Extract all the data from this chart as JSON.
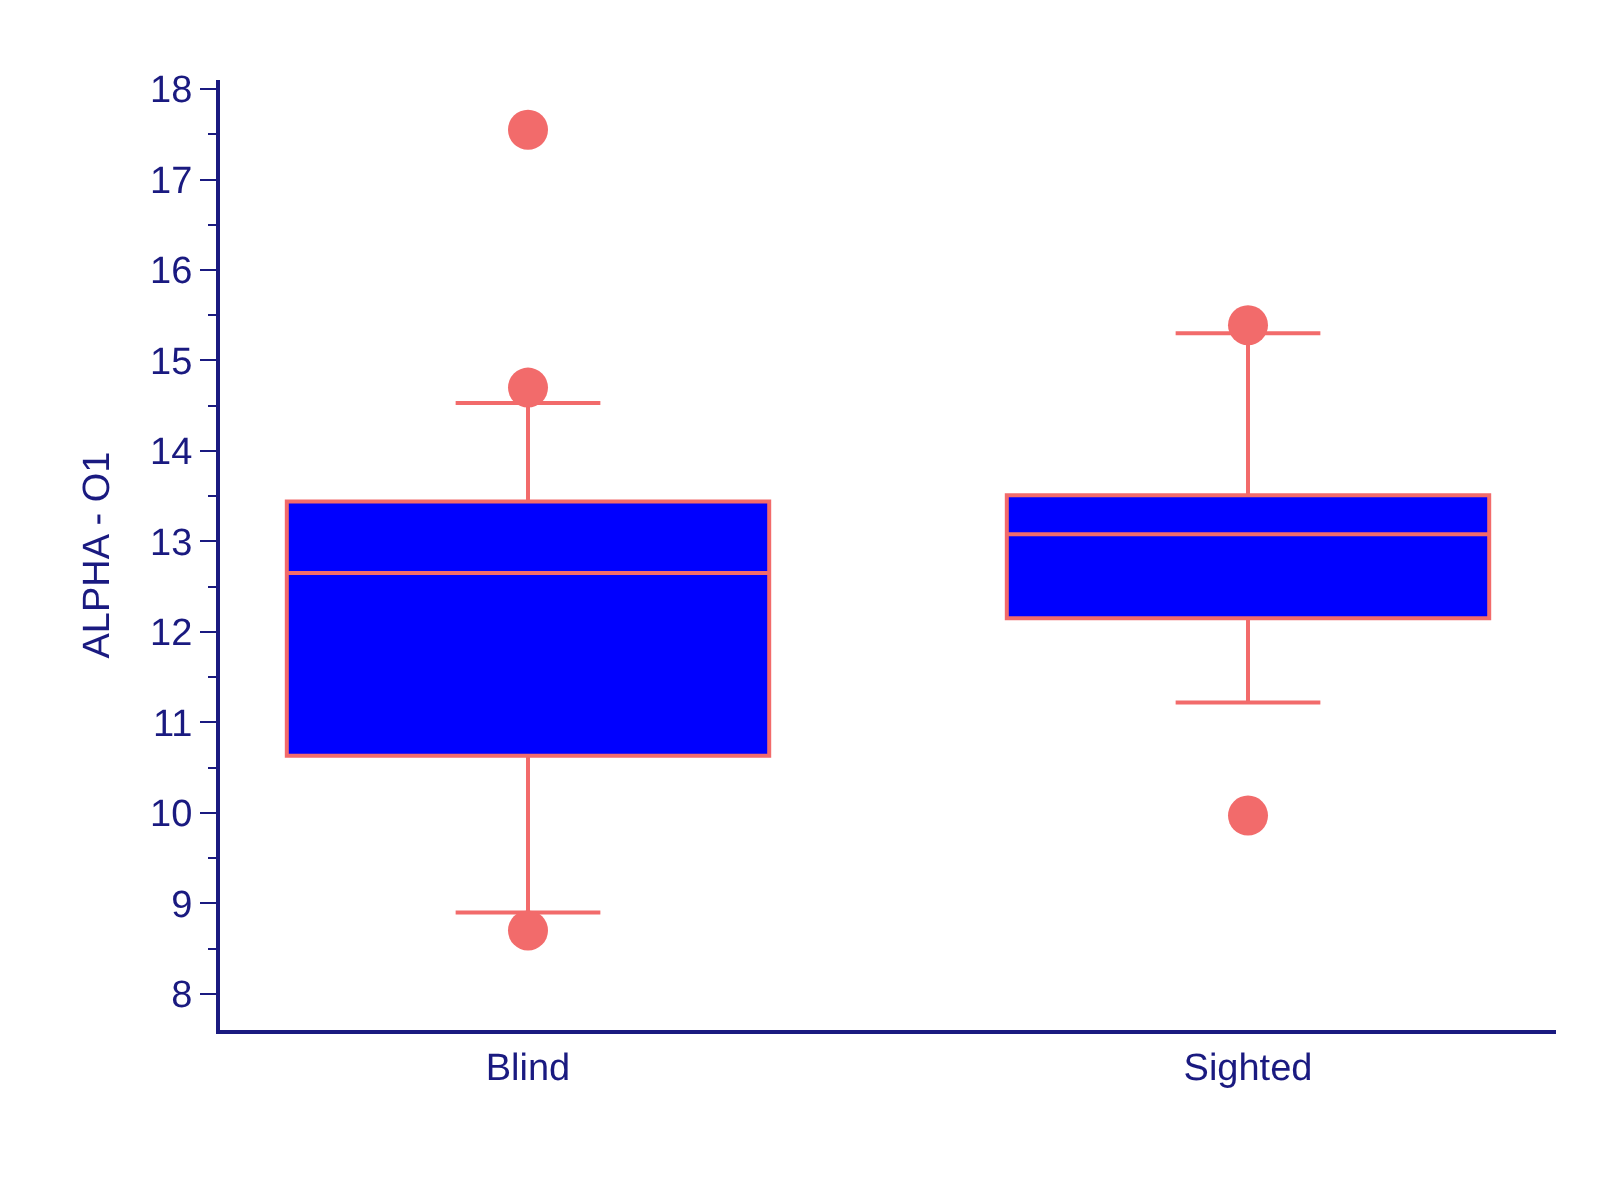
{
  "chart_data": {
    "type": "box",
    "ylabel": "ALPHA - O1",
    "categories": [
      "Blind",
      "Sighted"
    ],
    "boxes": [
      {
        "low": 8.9,
        "q1": 10.63,
        "median": 12.65,
        "q3": 13.44,
        "high": 14.53,
        "outliers": [
          17.55,
          14.7,
          8.7
        ]
      },
      {
        "low": 11.22,
        "q1": 12.15,
        "median": 13.08,
        "q3": 13.51,
        "high": 15.3,
        "outliers": [
          15.39,
          9.97
        ]
      }
    ],
    "colors": [
      "#0000ff",
      "#f26b6b"
    ],
    "ylim": [
      7.6,
      18.1
    ],
    "yticks": [
      8,
      9,
      10,
      11,
      12,
      13,
      14,
      15,
      16,
      17,
      18
    ]
  }
}
